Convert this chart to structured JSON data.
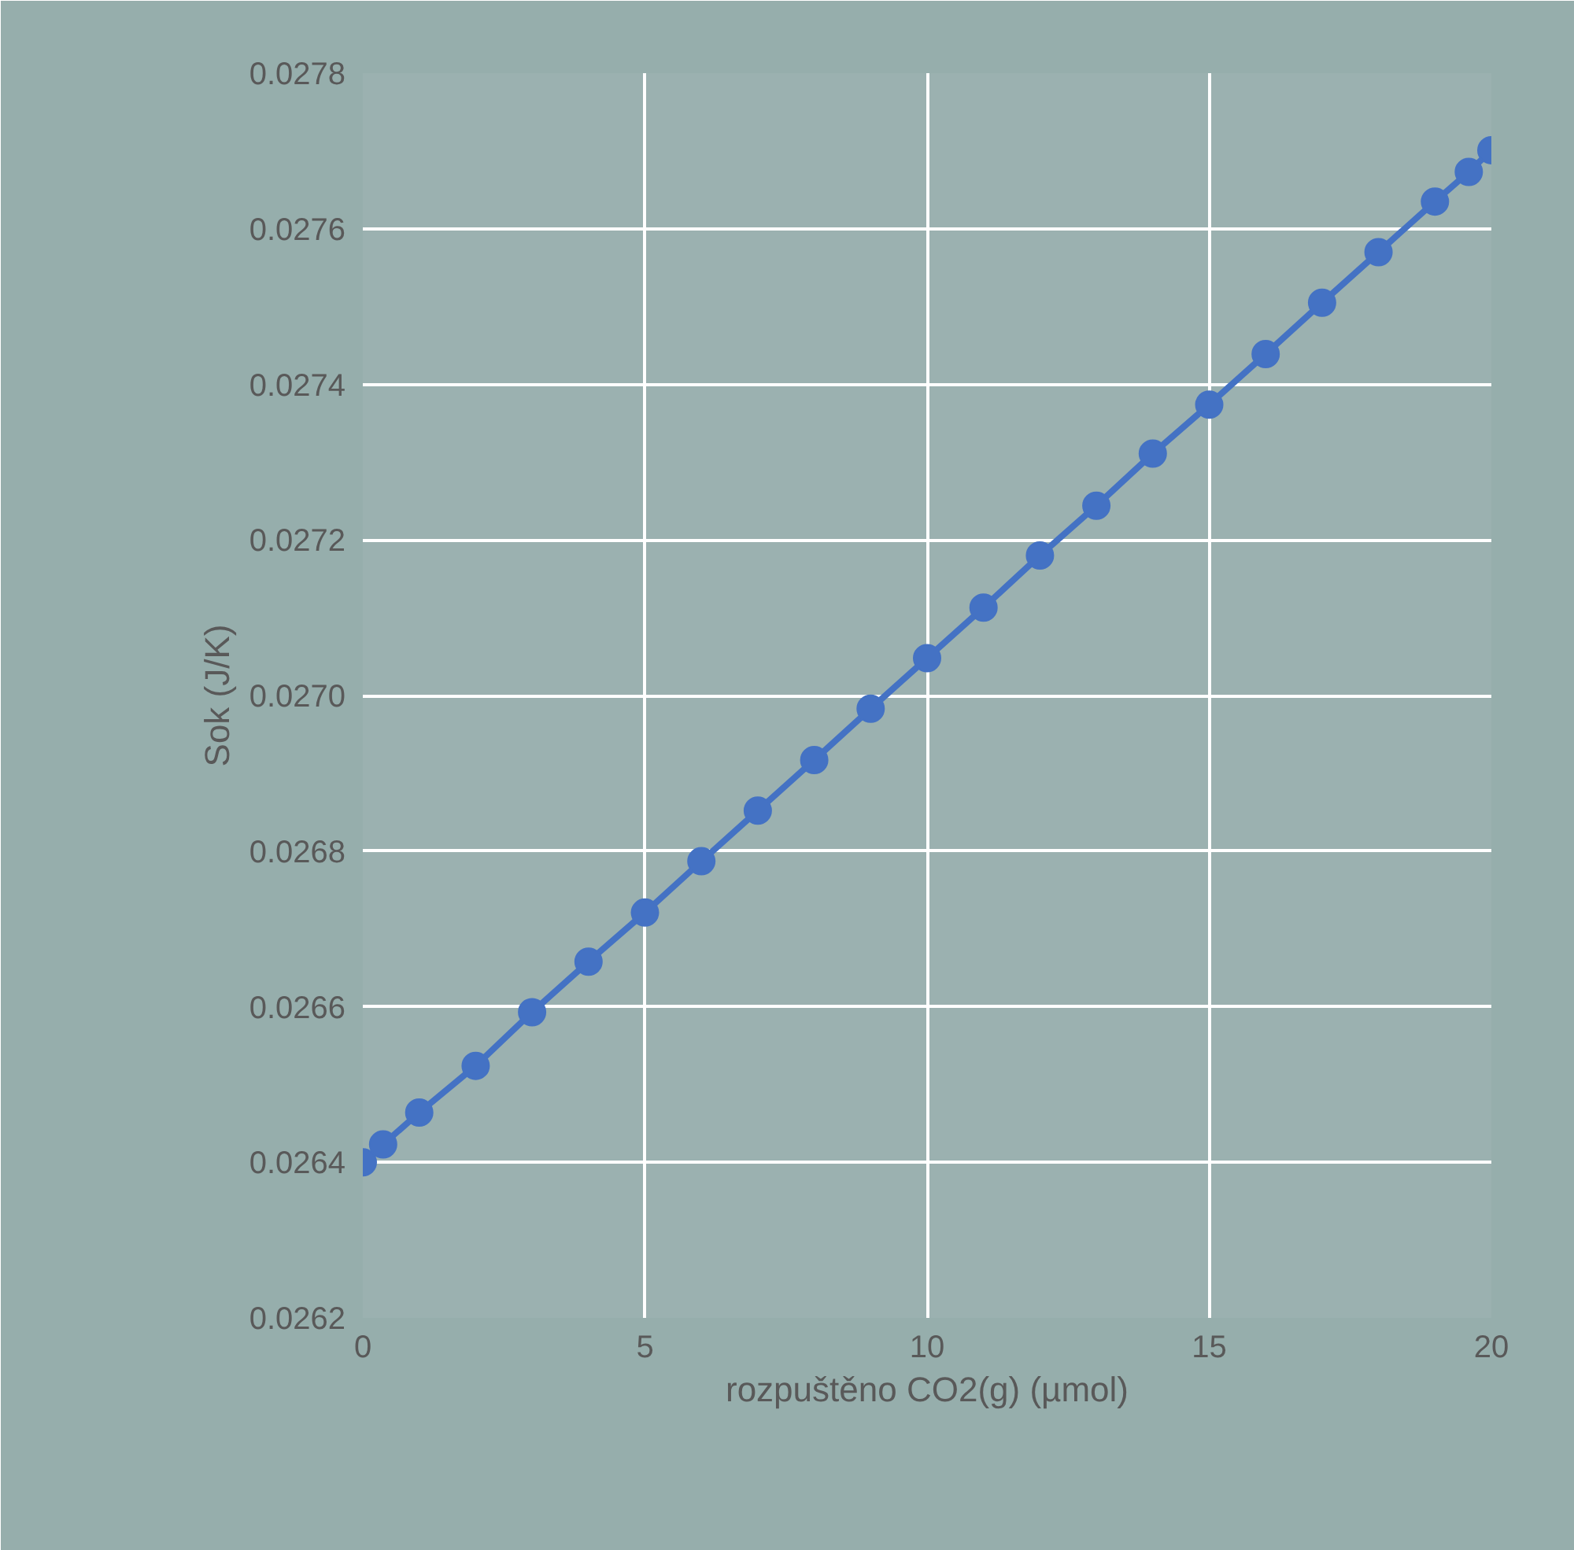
{
  "chart_data": {
    "type": "line",
    "xlabel": "rozpuštěno CO2(g) (µmol)",
    "ylabel": "Sok (J/K)",
    "xlim": [
      0,
      20
    ],
    "xticks": [
      0,
      5,
      10,
      15,
      20
    ],
    "ylim": [
      0.0262,
      0.0278
    ],
    "yticks": [
      {
        "value": 0.0262,
        "label": "0.0262"
      },
      {
        "value": 0.0264,
        "label": "0.0264"
      },
      {
        "value": 0.0266,
        "label": "0.0266"
      },
      {
        "value": 0.0268,
        "label": "0.0268"
      },
      {
        "value": 0.027,
        "label": "0.0270"
      },
      {
        "value": 0.0272,
        "label": "0.0272"
      },
      {
        "value": 0.0274,
        "label": "0.0274"
      },
      {
        "value": 0.0276,
        "label": "0.0276"
      },
      {
        "value": 0.0278,
        "label": "0.0278"
      }
    ],
    "grid": true,
    "marker": "circle",
    "line_style": "solid",
    "x": [
      0,
      0.36,
      1,
      2,
      3,
      4,
      5,
      6,
      7,
      8,
      9,
      10,
      11,
      12,
      13,
      14,
      15,
      16,
      17,
      18,
      19,
      19.6,
      20
    ],
    "series": [
      {
        "color": "#4472c4",
        "values": [
          0.0264,
          0.026423,
          0.026464,
          0.026524,
          0.026593,
          0.026658,
          0.026721,
          0.026787,
          0.026852,
          0.026917,
          0.026983,
          0.027048,
          0.027113,
          0.02718,
          0.027244,
          0.027311,
          0.027374,
          0.027439,
          0.027505,
          0.02757,
          0.027635,
          0.027673,
          0.027701
        ]
      }
    ]
  }
}
